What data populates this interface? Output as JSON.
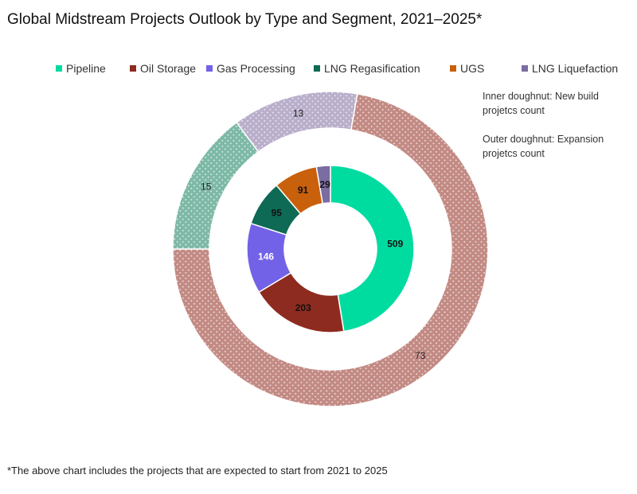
{
  "chart_data": {
    "type": "doughnut",
    "title": "Global Midstream Projects Outlook by Type and Segment, 2021–2025*",
    "legend": {
      "position": "top",
      "entries": [
        {
          "name": "Pipeline",
          "color": "#00DCA0"
        },
        {
          "name": "Oil Storage",
          "color": "#8E2B20"
        },
        {
          "name": "Gas Processing",
          "color": "#7262E8"
        },
        {
          "name": "LNG Regasification",
          "color": "#0E6A55"
        },
        {
          "name": "UGS",
          "color": "#C8600C"
        },
        {
          "name": "LNG Liquefaction",
          "color": "#7B6CA2"
        }
      ]
    },
    "inner": {
      "label": "Inner doughnut: New build projetcs count",
      "segments": [
        {
          "category": "Pipeline",
          "value": 509,
          "color": "#00DCA0",
          "label_color": "#111"
        },
        {
          "category": "Oil Storage",
          "value": 203,
          "color": "#8E2B20",
          "label_color": "#111"
        },
        {
          "category": "Gas Processing",
          "value": 146,
          "color": "#7262E8",
          "label_color": "#fff"
        },
        {
          "category": "LNG Regasification",
          "value": 95,
          "color": "#0E6A55",
          "label_color": "#111"
        },
        {
          "category": "UGS",
          "value": 91,
          "color": "#C8600C",
          "label_color": "#111"
        },
        {
          "category": "LNG Liquefaction",
          "value": 29,
          "color": "#7B6CA2",
          "label_color": "#111"
        }
      ]
    },
    "outer": {
      "label": "Outer doughnut: Expansion projetcs count",
      "segments": [
        {
          "category": "Oil Storage",
          "value": 73,
          "color": "#C38A84",
          "pattern": "dotted"
        },
        {
          "category": "Pipeline",
          "value": 15,
          "color": "#7DB9A6",
          "pattern": "dotted"
        },
        {
          "category": "LNG Liquefaction",
          "value": 13,
          "color": "#B9AFCB",
          "pattern": "dotted"
        }
      ]
    },
    "footnote": "*The above chart includes the projects that are expected to start from 2021 to 2025"
  }
}
